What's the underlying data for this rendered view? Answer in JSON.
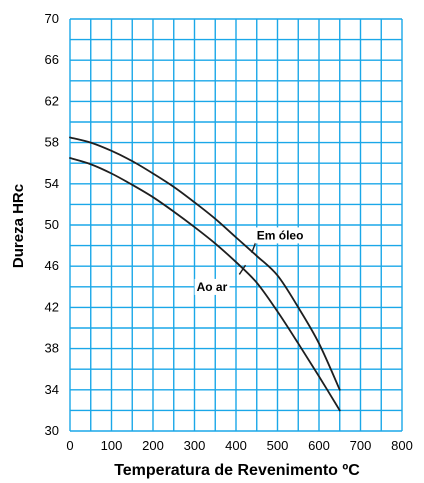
{
  "colors": {
    "background": "#ffffff",
    "grid": "#1aa7e8",
    "curve": "#1f1f1f",
    "text": "#000000"
  },
  "chart_data": {
    "type": "line",
    "xlabel": "Temperatura de Revenimento ºC",
    "ylabel": "Dureza HRc",
    "xlim": [
      0,
      800
    ],
    "ylim": [
      30,
      70
    ],
    "x_ticks": [
      0,
      100,
      200,
      300,
      400,
      500,
      600,
      700,
      800
    ],
    "y_ticks": [
      30,
      34,
      38,
      42,
      46,
      50,
      54,
      58,
      62,
      66,
      70
    ],
    "x_minor_step": 50,
    "y_minor_step": 2,
    "grid": true,
    "series": [
      {
        "name": "Em óleo",
        "x": [
          0,
          50,
          100,
          150,
          200,
          250,
          300,
          350,
          400,
          450,
          500,
          550,
          600,
          650
        ],
        "y": [
          58.5,
          58.0,
          57.2,
          56.2,
          55.0,
          53.7,
          52.2,
          50.6,
          48.8,
          47.0,
          45.1,
          42.0,
          38.5,
          34.0
        ]
      },
      {
        "name": "Ao ar",
        "x": [
          0,
          50,
          100,
          150,
          200,
          250,
          300,
          350,
          400,
          450,
          500,
          550,
          600,
          650
        ],
        "y": [
          56.5,
          55.9,
          55.0,
          53.9,
          52.7,
          51.3,
          49.8,
          48.2,
          46.4,
          44.4,
          41.6,
          38.5,
          35.3,
          32.0
        ]
      }
    ],
    "annotations": [
      {
        "text": "Em óleo",
        "x": 450,
        "y": 48.6,
        "arrow_from": [
          450,
          48.6
        ],
        "arrow_to": [
          438,
          47.3
        ]
      },
      {
        "text": "Ao ar",
        "x": 305,
        "y": 43.6,
        "arrow_from": [
          408,
          45.2
        ],
        "arrow_to": [
          423,
          46.1
        ]
      }
    ]
  }
}
